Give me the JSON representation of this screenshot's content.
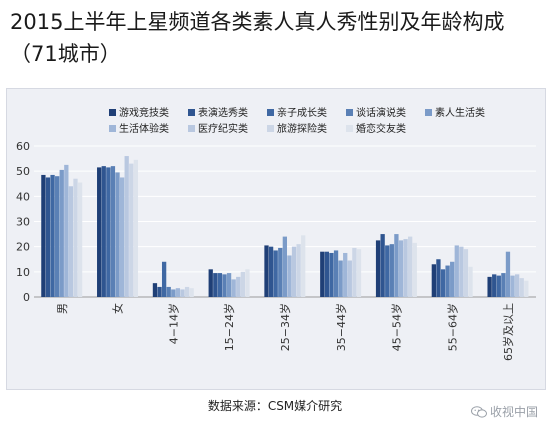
{
  "title": "2015上半年上星频道各类素人真人秀性别及年龄构成（71城市）",
  "source": "数据来源：CSM媒介研究",
  "watermark": {
    "text": "收视中国",
    "icon": "wechat-icon"
  },
  "chart_data": {
    "type": "bar",
    "title": "2015上半年上星频道各类素人真人秀性别及年龄构成（71城市）",
    "xlabel": "",
    "ylabel": "",
    "ylim": [
      0,
      60
    ],
    "yticks": [
      0,
      10,
      20,
      30,
      40,
      50,
      60
    ],
    "grid": true,
    "legend": "top",
    "categories": [
      "男",
      "女",
      "4−14岁",
      "15−24岁",
      "25−34岁",
      "35−44岁",
      "45−54岁",
      "55−64岁",
      "65岁及以上"
    ],
    "series": [
      {
        "name": "游戏竞技类",
        "color": "#1f3f76",
        "values": [
          48.5,
          51.5,
          5.5,
          11.0,
          20.5,
          18.0,
          22.5,
          13.0,
          8.0
        ]
      },
      {
        "name": "表演选秀类",
        "color": "#2f5590",
        "values": [
          47.5,
          52.0,
          4.0,
          9.5,
          20.0,
          18.0,
          25.0,
          15.0,
          9.0
        ]
      },
      {
        "name": "亲子成长类",
        "color": "#3f68a3",
        "values": [
          48.5,
          51.5,
          14.0,
          9.5,
          18.5,
          17.5,
          20.5,
          11.0,
          8.5
        ]
      },
      {
        "name": "谈话演说类",
        "color": "#5a80b5",
        "values": [
          48.0,
          52.0,
          4.0,
          9.0,
          19.5,
          18.5,
          21.0,
          12.5,
          9.5
        ]
      },
      {
        "name": "素人生活类",
        "color": "#7b9bc8",
        "values": [
          50.5,
          49.5,
          3.0,
          9.5,
          24.0,
          14.5,
          25.0,
          14.0,
          18.0
        ]
      },
      {
        "name": "生活体验类",
        "color": "#9fb6d8",
        "values": [
          52.5,
          47.5,
          3.5,
          7.0,
          16.5,
          17.5,
          22.5,
          20.5,
          8.5
        ]
      },
      {
        "name": "医疗纪实类",
        "color": "#b9c8e0",
        "values": [
          44.0,
          56.0,
          3.0,
          8.0,
          20.0,
          14.5,
          23.0,
          20.0,
          9.0
        ]
      },
      {
        "name": "旅游探险类",
        "color": "#ccd6e6",
        "values": [
          47.0,
          53.0,
          4.0,
          10.0,
          21.0,
          19.5,
          24.0,
          19.0,
          7.5
        ]
      },
      {
        "name": "婚恋交友类",
        "color": "#dde3ec",
        "values": [
          45.5,
          54.5,
          3.5,
          11.0,
          24.5,
          19.0,
          21.5,
          12.0,
          6.5
        ]
      }
    ]
  }
}
